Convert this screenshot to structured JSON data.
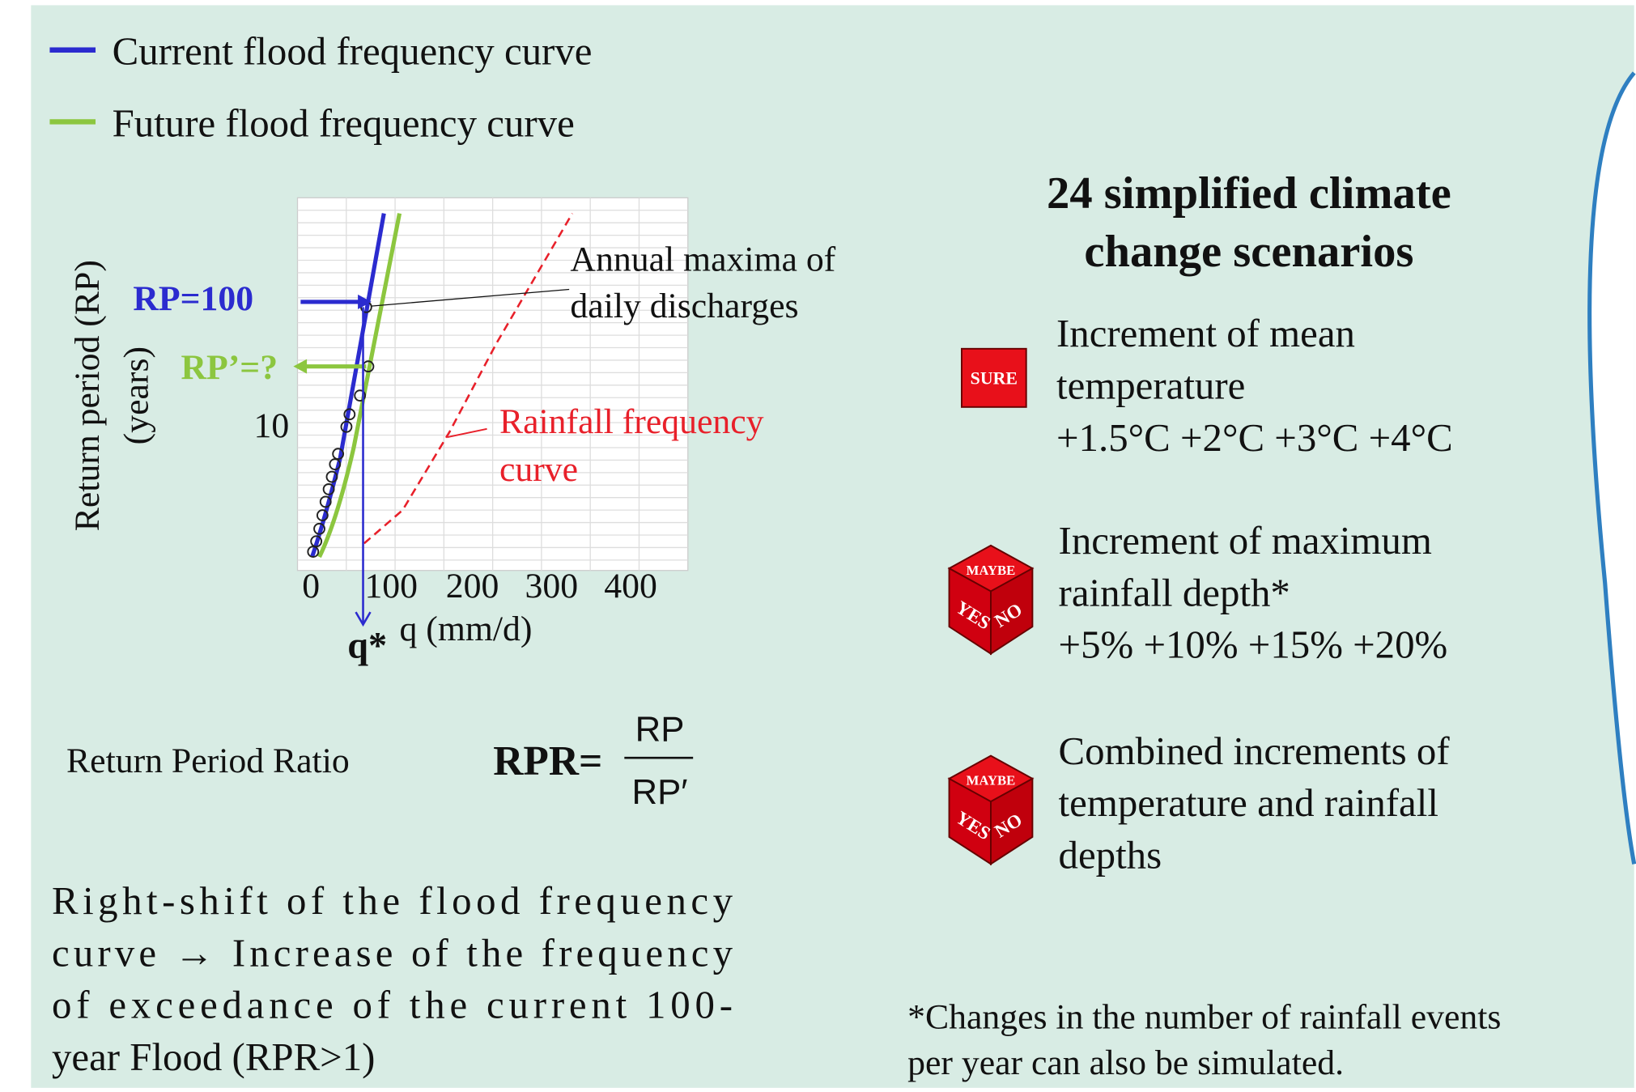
{
  "legend": [
    "Current flood frequency curve",
    "Future flood frequency curve"
  ],
  "plot": {
    "y_label": "Return period (RP)",
    "y_unit": "(years)",
    "y_tick": "10",
    "x_ticks": [
      "0",
      "100",
      "200",
      "300",
      "400"
    ],
    "x_label": "q (mm/d)",
    "q_star": "q*",
    "rp_100": "RP=100",
    "rp_prime": "RP’=?",
    "annotation_maxima": [
      "Annual maxima of",
      "daily discharges"
    ],
    "annotation_rainfall": [
      "Rainfall frequency",
      "curve"
    ]
  },
  "ratio": {
    "label": "Return Period Ratio",
    "lhs": "RPR=",
    "numerator": "RP",
    "denominator": "RP′"
  },
  "note": [
    "Right-shift of the flood frequency",
    "curve → Increase of the frequency",
    "of exceedance of the current 100-",
    "year Flood (RPR>1)"
  ],
  "scenarios": {
    "title": [
      "24 simplified climate",
      "change scenarios"
    ],
    "items": [
      {
        "badge": [
          "SURE"
        ],
        "lines": [
          "Increment of mean",
          "temperature",
          "+1.5°C +2°C +3°C +4°C"
        ]
      },
      {
        "badge": [
          "MAYBE",
          "YES",
          "NO"
        ],
        "lines": [
          "Increment of maximum",
          "rainfall depth*",
          "+5% +10% +15% +20%"
        ]
      },
      {
        "badge": [
          "MAYBE",
          "YES",
          "NO"
        ],
        "lines": [
          "Combined increments of",
          "temperature and rainfall",
          "depths"
        ]
      }
    ]
  },
  "footnote": [
    "*Changes in the number of rainfall events",
    "per year can also be simulated."
  ]
}
